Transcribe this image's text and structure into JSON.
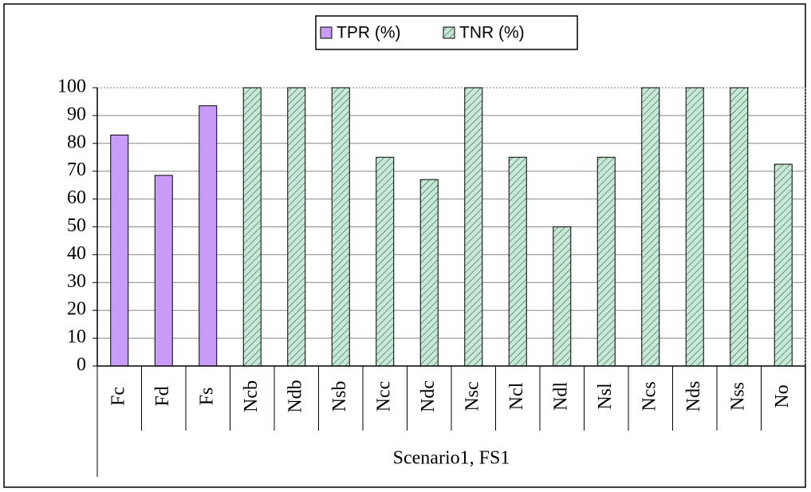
{
  "chart_data": {
    "type": "bar",
    "categories": [
      "Fc",
      "Fd",
      "Fs",
      "Ncb",
      "Ndb",
      "Nsb",
      "Ncc",
      "Ndc",
      "Nsc",
      "Ncl",
      "Ndl",
      "Nsl",
      "Ncs",
      "Nds",
      "Nss",
      "No"
    ],
    "series": [
      {
        "name": "TPR (%)",
        "color": "#c89cf8",
        "values": [
          83,
          68.5,
          93.5,
          null,
          null,
          null,
          null,
          null,
          null,
          null,
          null,
          null,
          null,
          null,
          null,
          null
        ]
      },
      {
        "name": "TNR (%)",
        "color": "#c8e8d8",
        "values": [
          null,
          null,
          null,
          100,
          100,
          100,
          75,
          67,
          100,
          75,
          50,
          75,
          100,
          100,
          100,
          72.5
        ]
      }
    ],
    "x_group_label": "Scenario1, FS1",
    "ylim": [
      0,
      100
    ],
    "yticks": [
      0,
      10,
      20,
      30,
      40,
      50,
      60,
      70,
      80,
      90,
      100
    ],
    "grid": true,
    "legend": "top"
  }
}
